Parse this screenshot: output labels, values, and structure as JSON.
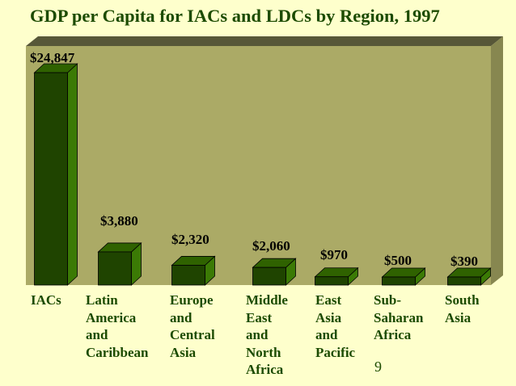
{
  "chart_data": {
    "type": "bar",
    "title": "GDP per Capita for IACs and LDCs by Region, 1997",
    "categories": [
      [
        "IACs"
      ],
      [
        "Latin",
        "America",
        "and",
        "Caribbean"
      ],
      [
        "Europe",
        "and",
        "Central",
        "Asia"
      ],
      [
        "Middle",
        "East",
        "and",
        "North",
        "Africa"
      ],
      [
        "East",
        "Asia",
        "and",
        "Pacific"
      ],
      [
        "Sub-",
        "Saharan",
        "Africa"
      ],
      [
        "South",
        "Asia"
      ]
    ],
    "values": [
      24847,
      3880,
      2320,
      2060,
      970,
      500,
      390
    ],
    "value_labels": [
      "$24,847",
      "$3,880",
      "$2,320",
      "$2,060",
      "$970",
      "$500",
      "$390"
    ],
    "ylim": [
      0,
      24847
    ],
    "grid": false,
    "legend": "none",
    "colors": {
      "bar_front": "#1F4400",
      "bar_side": "#3B7A05",
      "bar_top": "#2F6200",
      "plot_back": "#ABAA66",
      "plot_wall_top": "#575738",
      "plot_wall_side": "#878750",
      "text": "#1C4B00",
      "background": "#FEFFCC"
    }
  },
  "page_number": "9"
}
